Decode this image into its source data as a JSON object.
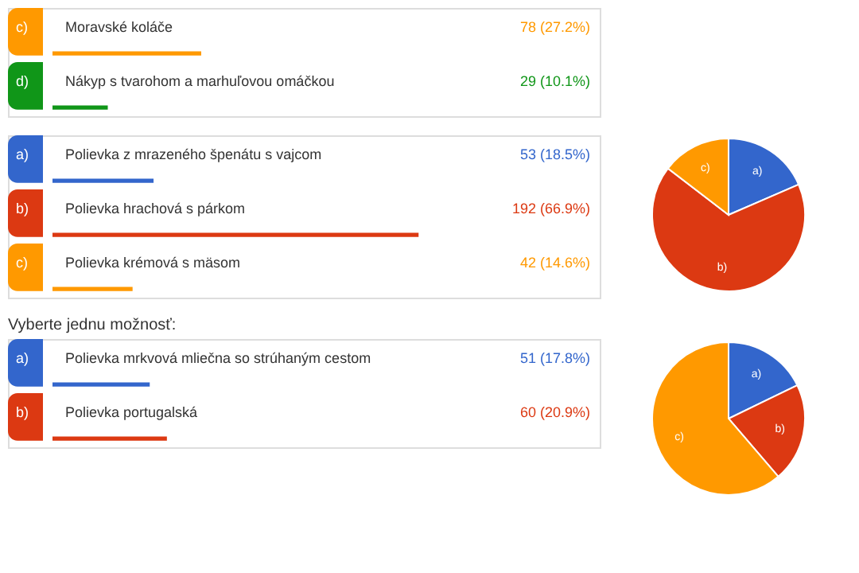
{
  "chart_data": [
    {
      "type": "bar",
      "orientation": "horizontal",
      "categories": [
        "Moravské koláče",
        "Nákyp s tvarohom a marhuľovou omáčkou"
      ],
      "values": [
        78,
        29
      ],
      "value_labels": [
        "78 (27.2%)",
        "29 (10.1%)"
      ],
      "colors": [
        "#ff9900",
        "#109618"
      ],
      "xlim": [
        0,
        287
      ],
      "annotations": [
        "c)",
        "d)"
      ]
    },
    {
      "type": "bar",
      "orientation": "horizontal",
      "categories": [
        "Polievka z mrazeného špenátu s vajcom",
        "Polievka hrachová s párkom",
        "Polievka krémová s mäsom"
      ],
      "values": [
        53,
        192,
        42
      ],
      "value_labels": [
        "53 (18.5%)",
        "192 (66.9%)",
        "42 (14.6%)"
      ],
      "colors": [
        "#3366cc",
        "#dc3912",
        "#ff9900"
      ],
      "xlim": [
        0,
        287
      ],
      "annotations": [
        "a)",
        "b)",
        "c)"
      ]
    },
    {
      "type": "pie",
      "categories": [
        "a)",
        "b)",
        "c)"
      ],
      "values": [
        18.5,
        66.9,
        14.6
      ],
      "colors": [
        "#3366cc",
        "#dc3912",
        "#ff9900"
      ]
    },
    {
      "type": "bar",
      "orientation": "horizontal",
      "title": "Vyberte jednu možnosť:",
      "categories": [
        "Polievka mrkvová mliečna so strúhaným cestom",
        "Polievka portugalská"
      ],
      "values": [
        51,
        60
      ],
      "value_labels": [
        "51 (17.8%)",
        "60 (20.9%)"
      ],
      "colors": [
        "#3366cc",
        "#dc3912"
      ],
      "xlim": [
        0,
        287
      ],
      "annotations": [
        "a)",
        "b)"
      ]
    },
    {
      "type": "pie",
      "categories": [
        "a)",
        "b)",
        "c)"
      ],
      "values": [
        17.8,
        20.9,
        61.3
      ],
      "colors": [
        "#3366cc",
        "#dc3912",
        "#ff9900"
      ]
    }
  ]
}
